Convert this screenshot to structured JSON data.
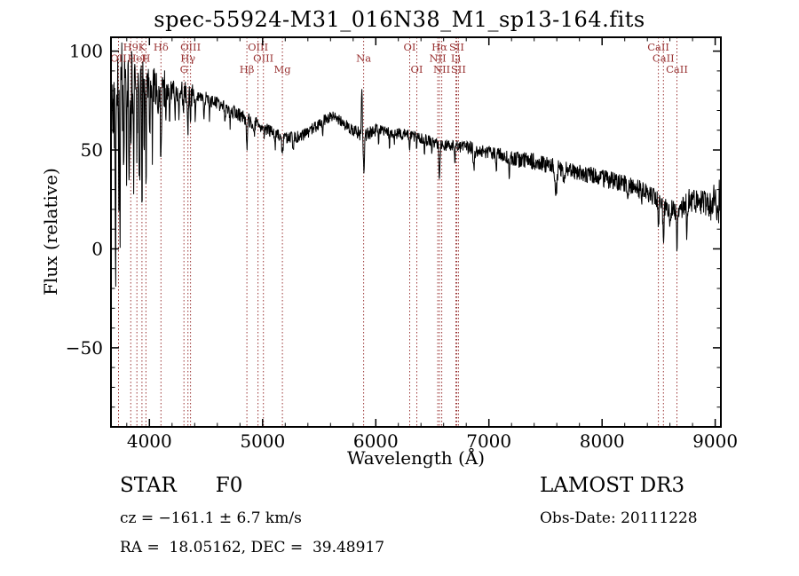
{
  "title": "spec-55924-M31_016N38_M1_sp13-164.fits",
  "footer": {
    "object_type": "STAR",
    "subclass": "F0",
    "survey": "LAMOST DR3",
    "cz_text": "cz = −161.1 ± 6.7 km/s",
    "obs_date_text": "Obs-Date: 20111228",
    "coords_text": "RA =  18.05162, DEC =  39.48917"
  },
  "chart_data": {
    "type": "line",
    "title": "spec-55924-M31_016N38_M1_sp13-164.fits",
    "xlabel": "Wavelength (Å)",
    "ylabel": "Flux (relative)",
    "xlim": [
      3660,
      9050
    ],
    "ylim": [
      -90,
      107
    ],
    "xticks": [
      4000,
      5000,
      6000,
      7000,
      8000,
      9000
    ],
    "yticks": [
      -50,
      0,
      50,
      100
    ],
    "x_minor_step": 200,
    "y_minor_step": 10,
    "grid": false,
    "line_color": "#000000",
    "marker_color": "#993333",
    "spectral_lines": [
      {
        "label": "OII",
        "wavelength": 3727,
        "row": 1
      },
      {
        "label": "H9",
        "wavelength": 3835,
        "row": 0
      },
      {
        "label": "HeI",
        "wavelength": 3889,
        "row": 1
      },
      {
        "label": "K",
        "wavelength": 3934,
        "row": 0
      },
      {
        "label": "H",
        "wavelength": 3969,
        "row": 1
      },
      {
        "label": "Hδ",
        "wavelength": 4102,
        "row": 0
      },
      {
        "label": "G",
        "wavelength": 4305,
        "row": 2
      },
      {
        "label": "Hγ",
        "wavelength": 4340,
        "row": 1
      },
      {
        "label": "OIII",
        "wavelength": 4363,
        "row": 0
      },
      {
        "label": "Hβ",
        "wavelength": 4861,
        "row": 2
      },
      {
        "label": "OIII",
        "wavelength": 4959,
        "row": 0
      },
      {
        "label": "OIII",
        "wavelength": 5007,
        "row": 1
      },
      {
        "label": "Mg",
        "wavelength": 5175,
        "row": 2
      },
      {
        "label": "Na",
        "wavelength": 5893,
        "row": 1
      },
      {
        "label": "OI",
        "wavelength": 6300,
        "row": 0
      },
      {
        "label": "OI",
        "wavelength": 6363,
        "row": 2
      },
      {
        "label": "NII",
        "wavelength": 6548,
        "row": 1
      },
      {
        "label": "Hα",
        "wavelength": 6563,
        "row": 0
      },
      {
        "label": "NII",
        "wavelength": 6583,
        "row": 2
      },
      {
        "label": "Li",
        "wavelength": 6708,
        "row": 1
      },
      {
        "label": "SII",
        "wavelength": 6716,
        "row": 0
      },
      {
        "label": "SII",
        "wavelength": 6731,
        "row": 2
      },
      {
        "label": "CaII",
        "wavelength": 8498,
        "row": 0
      },
      {
        "label": "CaII",
        "wavelength": 8542,
        "row": 1
      },
      {
        "label": "CaII",
        "wavelength": 8662,
        "row": 2
      }
    ],
    "spectrum": {
      "sample_step": 3,
      "seed": 77,
      "anchors": [
        [
          3660,
          70
        ],
        [
          3690,
          76
        ],
        [
          3730,
          80
        ],
        [
          3780,
          82
        ],
        [
          3850,
          83
        ],
        [
          3950,
          82
        ],
        [
          4050,
          82
        ],
        [
          4150,
          81
        ],
        [
          4250,
          80
        ],
        [
          4350,
          78
        ],
        [
          4450,
          77
        ],
        [
          4550,
          75
        ],
        [
          4650,
          72
        ],
        [
          4750,
          69
        ],
        [
          4850,
          66
        ],
        [
          4950,
          63
        ],
        [
          5050,
          60
        ],
        [
          5150,
          57
        ],
        [
          5250,
          56
        ],
        [
          5350,
          57
        ],
        [
          5450,
          61
        ],
        [
          5550,
          65
        ],
        [
          5620,
          67
        ],
        [
          5700,
          64
        ],
        [
          5800,
          60
        ],
        [
          5870,
          58
        ],
        [
          5930,
          58
        ],
        [
          6000,
          60
        ],
        [
          6100,
          59
        ],
        [
          6250,
          58
        ],
        [
          6400,
          56
        ],
        [
          6550,
          53
        ],
        [
          6700,
          52
        ],
        [
          6850,
          51
        ],
        [
          7000,
          49
        ],
        [
          7150,
          47
        ],
        [
          7300,
          45
        ],
        [
          7450,
          44
        ],
        [
          7600,
          41
        ],
        [
          7750,
          39
        ],
        [
          7900,
          37
        ],
        [
          8050,
          35
        ],
        [
          8200,
          33
        ],
        [
          8350,
          30
        ],
        [
          8450,
          27
        ],
        [
          8520,
          24
        ],
        [
          8570,
          21
        ],
        [
          8640,
          19
        ],
        [
          8700,
          22
        ],
        [
          8780,
          25
        ],
        [
          8860,
          24
        ],
        [
          8940,
          23
        ],
        [
          9000,
          22
        ],
        [
          9050,
          26
        ]
      ],
      "noise_regions": [
        [
          3660,
          3790,
          25
        ],
        [
          3790,
          3960,
          19
        ],
        [
          3960,
          4150,
          10
        ],
        [
          4150,
          4400,
          6
        ],
        [
          4400,
          5000,
          3.5
        ],
        [
          5000,
          5820,
          3
        ],
        [
          5820,
          5960,
          3.5
        ],
        [
          5960,
          6800,
          3
        ],
        [
          6800,
          7200,
          3.5
        ],
        [
          7200,
          7800,
          4.5
        ],
        [
          7800,
          8300,
          4.5
        ],
        [
          8300,
          8700,
          5
        ],
        [
          8700,
          8960,
          7
        ],
        [
          8960,
          9050,
          12
        ]
      ],
      "features": [
        [
          3700,
          -100,
          3
        ],
        [
          3727,
          -45,
          3
        ],
        [
          3740,
          -65,
          3
        ],
        [
          3772,
          -45,
          3
        ],
        [
          3798,
          -35,
          3
        ],
        [
          3820,
          -62,
          3
        ],
        [
          3835,
          -40,
          3
        ],
        [
          3860,
          -48,
          3
        ],
        [
          3889,
          -42,
          3
        ],
        [
          3912,
          -50,
          3
        ],
        [
          3934,
          -62,
          3
        ],
        [
          3952,
          -32,
          3
        ],
        [
          3970,
          -46,
          3
        ],
        [
          4002,
          -26,
          3
        ],
        [
          4026,
          -30,
          3
        ],
        [
          4078,
          -24,
          3
        ],
        [
          4102,
          -42,
          4
        ],
        [
          4144,
          -18,
          3
        ],
        [
          4178,
          -18,
          3
        ],
        [
          4227,
          -16,
          3
        ],
        [
          4262,
          -13,
          3
        ],
        [
          4300,
          -15,
          4
        ],
        [
          4340,
          -22,
          4
        ],
        [
          4363,
          -12,
          3
        ],
        [
          4405,
          -12,
          3
        ],
        [
          4481,
          -15,
          3
        ],
        [
          4530,
          -9,
          3
        ],
        [
          4668,
          -10,
          3
        ],
        [
          4713,
          -8,
          3
        ],
        [
          4861,
          -16,
          5
        ],
        [
          4925,
          -8,
          4
        ],
        [
          5015,
          -7,
          3
        ],
        [
          5110,
          -7,
          3
        ],
        [
          5175,
          -9,
          6
        ],
        [
          5270,
          -8,
          4
        ],
        [
          5530,
          -7,
          4
        ],
        [
          5877,
          26,
          4
        ],
        [
          5895,
          -17,
          6
        ],
        [
          6025,
          -6,
          3
        ],
        [
          6122,
          -7,
          3
        ],
        [
          6162,
          -6,
          3
        ],
        [
          6300,
          -9,
          3
        ],
        [
          6363,
          -6,
          3
        ],
        [
          6430,
          -8,
          3
        ],
        [
          6495,
          -7,
          3
        ],
        [
          6563,
          -17,
          5
        ],
        [
          6700,
          -7,
          3
        ],
        [
          6867,
          -10,
          6
        ],
        [
          7065,
          -7,
          4
        ],
        [
          7180,
          -8,
          5
        ],
        [
          7594,
          -12,
          8
        ],
        [
          7665,
          -8,
          5
        ],
        [
          8227,
          -10,
          4
        ],
        [
          8350,
          -8,
          4
        ],
        [
          8498,
          -13,
          5
        ],
        [
          8542,
          -18,
          5
        ],
        [
          8600,
          -9,
          4
        ],
        [
          8662,
          -17,
          5
        ],
        [
          8750,
          -15,
          4
        ]
      ]
    }
  }
}
